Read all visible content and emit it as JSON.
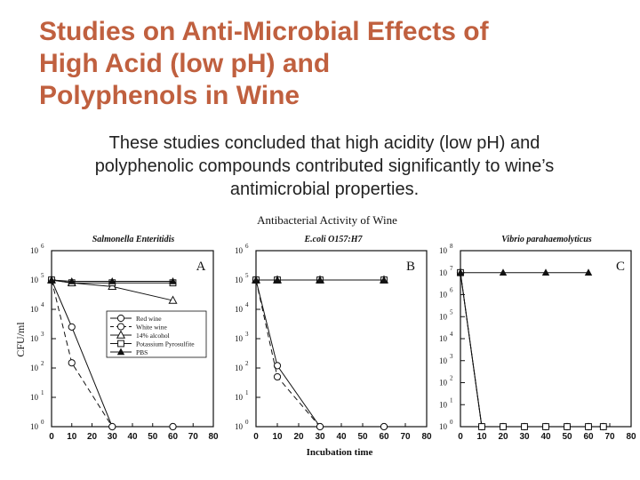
{
  "slide": {
    "title_lines": [
      "Studies on Anti-Microbial Effects of",
      "High Acid (low pH) and",
      "Polyphenols in Wine"
    ],
    "body_lines": [
      "These studies concluded that high acidity (low pH) and",
      "polyphenolic compounds contributed significantly to wine’s",
      "antimicrobial properties."
    ]
  },
  "figure": {
    "title": "Antibacterial Activity of Wine",
    "ylabel": "CFU/ml",
    "xlabel": "Incubation time",
    "x_ticks": [
      "0",
      "10",
      "20",
      "30",
      "40",
      "50",
      "60",
      "70",
      "80"
    ],
    "legend": [
      "Red wine",
      "White wine",
      "14% alcohol",
      "Potassium Pyrosulfite",
      "PBS"
    ]
  },
  "chart_data": [
    {
      "type": "line",
      "panel": "A",
      "title": "Salmonella Enteritidis",
      "y_scale": "log",
      "y_tick_exponents": [
        0,
        1,
        2,
        3,
        4,
        5,
        6
      ],
      "ylim": [
        1,
        1000000
      ],
      "xlim": [
        0,
        80
      ],
      "series": [
        {
          "name": "Red wine",
          "x": [
            0,
            10,
            30,
            60
          ],
          "y": [
            100000,
            2500,
            1,
            1
          ]
        },
        {
          "name": "White wine",
          "x": [
            0,
            10,
            30,
            60
          ],
          "y": [
            100000,
            150,
            1,
            1
          ]
        },
        {
          "name": "14% alcohol",
          "x": [
            0,
            10,
            30,
            60
          ],
          "y": [
            100000,
            80000,
            60000,
            20000
          ]
        },
        {
          "name": "Potassium Pyrosulfite",
          "x": [
            0,
            10,
            30,
            60
          ],
          "y": [
            100000,
            80000,
            80000,
            80000
          ]
        },
        {
          "name": "PBS",
          "x": [
            0,
            10,
            30,
            60
          ],
          "y": [
            100000,
            90000,
            90000,
            90000
          ]
        }
      ]
    },
    {
      "type": "line",
      "panel": "B",
      "title": "E.coli O157:H7",
      "y_scale": "log",
      "y_tick_exponents": [
        0,
        1,
        2,
        3,
        4,
        5,
        6
      ],
      "ylim": [
        1,
        1000000
      ],
      "xlim": [
        0,
        80
      ],
      "series": [
        {
          "name": "Red wine",
          "x": [
            0,
            10,
            30,
            60
          ],
          "y": [
            100000,
            120,
            1,
            1
          ]
        },
        {
          "name": "White wine",
          "x": [
            0,
            10,
            30,
            60
          ],
          "y": [
            100000,
            50,
            1,
            1
          ]
        },
        {
          "name": "14% alcohol",
          "x": [
            0,
            10,
            30,
            60
          ],
          "y": [
            100000,
            100000,
            100000,
            100000
          ]
        },
        {
          "name": "Potassium Pyrosulfite",
          "x": [
            0,
            10,
            30,
            60
          ],
          "y": [
            100000,
            100000,
            100000,
            100000
          ]
        },
        {
          "name": "PBS",
          "x": [
            0,
            10,
            30,
            60
          ],
          "y": [
            100000,
            100000,
            100000,
            100000
          ]
        }
      ]
    },
    {
      "type": "line",
      "panel": "C",
      "title": "Vibrio parahaemolyticus",
      "y_scale": "log",
      "y_tick_exponents": [
        0,
        1,
        2,
        3,
        4,
        5,
        6,
        7,
        8
      ],
      "ylim": [
        1,
        100000000
      ],
      "xlim": [
        0,
        80
      ],
      "series": [
        {
          "name": "Red wine",
          "x": [
            0,
            10,
            20,
            30,
            40,
            50,
            60,
            67
          ],
          "y": [
            10000000,
            1,
            1,
            1,
            1,
            1,
            1,
            1
          ]
        },
        {
          "name": "White wine",
          "x": [
            0,
            10,
            20,
            30,
            40,
            50,
            60,
            67
          ],
          "y": [
            10000000,
            1,
            1,
            1,
            1,
            1,
            1,
            1
          ]
        },
        {
          "name": "Potassium Pyrosulfite",
          "x": [
            0,
            10,
            20,
            30,
            40,
            50,
            60,
            67
          ],
          "y": [
            10000000,
            1,
            1,
            1,
            1,
            1,
            1,
            1
          ]
        },
        {
          "name": "PBS",
          "x": [
            0,
            20,
            40,
            60
          ],
          "y": [
            10000000,
            10000000,
            10000000,
            10000000
          ]
        }
      ]
    }
  ]
}
